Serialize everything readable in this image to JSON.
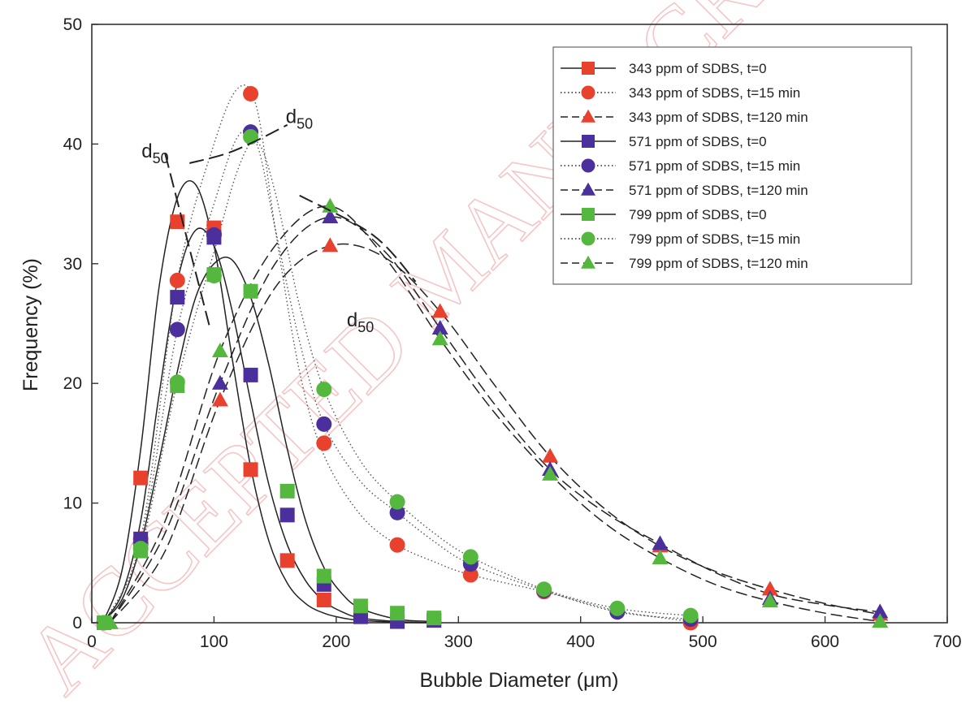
{
  "chart_data": {
    "type": "scatter",
    "title": "",
    "xlabel": "Bubble Diameter (μm)",
    "ylabel": "Frequency (%)",
    "xlim": [
      0,
      700
    ],
    "ylim": [
      0,
      50
    ],
    "xticks": [
      0,
      100,
      200,
      300,
      400,
      500,
      600,
      700
    ],
    "yticks": [
      0,
      10,
      20,
      30,
      40,
      50
    ],
    "grid": false,
    "legend_position": "top-right",
    "series": [
      {
        "name": "343 ppm of SDBS, t=0",
        "color": "#e8412e",
        "marker": "square",
        "line": "solid",
        "x": [
          10,
          40,
          70,
          100,
          130,
          160,
          190,
          220,
          250,
          280
        ],
        "y": [
          0,
          12.1,
          33.5,
          33.0,
          12.8,
          5.2,
          1.9,
          0.8,
          0.1,
          0.2
        ]
      },
      {
        "name": "343 ppm of SDBS, t=15 min",
        "color": "#e8412e",
        "marker": "circle",
        "line": "dotted",
        "x": [
          10,
          40,
          70,
          100,
          130,
          190,
          250,
          310,
          370,
          430,
          490
        ],
        "y": [
          0,
          7.0,
          28.6,
          32.5,
          44.2,
          15.0,
          6.5,
          4.0,
          2.6,
          1.0,
          0.0
        ]
      },
      {
        "name": "343 ppm of SDBS, t=120 min",
        "color": "#e8412e",
        "marker": "triangle",
        "line": "dashed",
        "x": [
          15,
          105,
          195,
          285,
          375,
          465,
          555,
          645
        ],
        "y": [
          0,
          18.6,
          31.5,
          26.0,
          13.9,
          6.4,
          2.8,
          0.7
        ]
      },
      {
        "name": "571 ppm of SDBS, t=0",
        "color": "#4b2f9c",
        "marker": "square",
        "line": "solid",
        "x": [
          10,
          40,
          70,
          100,
          130,
          160,
          190,
          220,
          250,
          280
        ],
        "y": [
          0,
          7.0,
          27.2,
          32.2,
          20.7,
          9.0,
          3.2,
          0.5,
          0.1,
          0.2
        ]
      },
      {
        "name": "571 ppm of SDBS, t=15 min",
        "color": "#4b2f9c",
        "marker": "circle",
        "line": "dotted",
        "x": [
          10,
          40,
          70,
          100,
          130,
          190,
          250,
          310,
          370,
          430,
          490
        ],
        "y": [
          0,
          6.6,
          24.5,
          32.4,
          41.0,
          16.6,
          9.2,
          4.9,
          2.7,
          0.9,
          0.3
        ]
      },
      {
        "name": "571 ppm of SDBS, t=120 min",
        "color": "#4b2f9c",
        "marker": "triangle",
        "line": "dashed",
        "x": [
          15,
          105,
          195,
          285,
          375,
          465,
          555,
          645
        ],
        "y": [
          0,
          20.0,
          33.9,
          24.6,
          12.8,
          6.6,
          2.0,
          0.9
        ]
      },
      {
        "name": "799 ppm of SDBS, t=0",
        "color": "#55b83e",
        "marker": "square",
        "line": "solid",
        "x": [
          10,
          40,
          70,
          100,
          130,
          160,
          190,
          220,
          250,
          280
        ],
        "y": [
          0,
          6.0,
          19.8,
          29.1,
          27.7,
          11.0,
          3.9,
          1.4,
          0.8,
          0.4
        ]
      },
      {
        "name": "799 ppm of SDBS, t=15 min",
        "color": "#55b83e",
        "marker": "circle",
        "line": "dotted",
        "x": [
          10,
          40,
          70,
          100,
          130,
          190,
          250,
          310,
          370,
          430,
          490
        ],
        "y": [
          0,
          6.2,
          20.1,
          29.0,
          40.6,
          19.5,
          10.1,
          5.5,
          2.8,
          1.2,
          0.6
        ]
      },
      {
        "name": "799 ppm of SDBS, t=120 min",
        "color": "#55b83e",
        "marker": "triangle",
        "line": "dashed",
        "x": [
          15,
          105,
          195,
          285,
          375,
          465,
          555,
          645
        ],
        "y": [
          0,
          22.7,
          34.8,
          23.7,
          12.4,
          5.4,
          1.8,
          0.1
        ]
      }
    ],
    "fit_curves": [
      {
        "series": "343 ppm of SDBS, t=0",
        "line": "solid",
        "x": [
          10,
          25,
          40,
          55,
          70,
          85,
          100,
          115,
          130,
          145,
          160,
          175,
          190,
          205,
          220,
          250,
          280
        ],
        "y": [
          0.2,
          4.5,
          14.5,
          28,
          35.5,
          36.6,
          31.5,
          22,
          13,
          6.8,
          3.3,
          1.6,
          0.8,
          0.4,
          0.2,
          0.05,
          0
        ]
      },
      {
        "series": "571 ppm of SDBS, t=0",
        "line": "solid",
        "x": [
          10,
          25,
          40,
          55,
          70,
          85,
          100,
          115,
          130,
          145,
          160,
          175,
          190,
          205,
          220,
          250,
          280
        ],
        "y": [
          0.2,
          2.5,
          8.5,
          19,
          28.5,
          32.8,
          31.5,
          26,
          18.5,
          11.5,
          6.5,
          3.5,
          1.8,
          0.9,
          0.4,
          0.1,
          0
        ]
      },
      {
        "series": "799 ppm of SDBS, t=0",
        "line": "solid",
        "x": [
          10,
          25,
          40,
          55,
          70,
          85,
          100,
          115,
          130,
          145,
          160,
          175,
          190,
          205,
          220,
          250,
          280
        ],
        "y": [
          0.2,
          2,
          6.5,
          13.5,
          21,
          27.2,
          30,
          30.3,
          27.2,
          21.5,
          14.5,
          8.5,
          4.6,
          2.4,
          1.2,
          0.3,
          0.1
        ]
      },
      {
        "series": "343 ppm of SDBS, t=15 min",
        "line": "dotted",
        "x": [
          10,
          40,
          70,
          100,
          120,
          135,
          150,
          170,
          190,
          220,
          250,
          280,
          310,
          370,
          430,
          490
        ],
        "y": [
          0,
          7.0,
          28.6,
          40,
          44.7,
          43,
          33,
          21,
          14,
          9.0,
          6.5,
          5.1,
          4.0,
          2.6,
          1.0,
          0.1
        ]
      },
      {
        "series": "571 ppm of SDBS, t=15 min",
        "line": "dotted",
        "x": [
          10,
          40,
          70,
          100,
          120,
          135,
          150,
          170,
          190,
          220,
          250,
          280,
          310,
          370,
          430,
          490
        ],
        "y": [
          0,
          6.6,
          24.5,
          35,
          40.7,
          40,
          33,
          23.5,
          16.6,
          11.8,
          9.2,
          6.8,
          4.9,
          2.7,
          0.9,
          0.3
        ]
      },
      {
        "series": "799 ppm of SDBS, t=15 min",
        "line": "dotted",
        "x": [
          10,
          40,
          70,
          100,
          120,
          135,
          150,
          170,
          190,
          220,
          250,
          280,
          310,
          370,
          430,
          490
        ],
        "y": [
          0,
          6.2,
          20.1,
          31,
          38,
          40.2,
          36,
          26.5,
          19.5,
          13.5,
          10.1,
          7.5,
          5.5,
          2.8,
          1.2,
          0.6
        ]
      },
      {
        "series": "343 ppm of SDBS, t=120 min",
        "line": "dashed",
        "x": [
          15,
          60,
          105,
          150,
          195,
          240,
          285,
          330,
          375,
          420,
          465,
          510,
          555,
          600,
          645
        ],
        "y": [
          0,
          6,
          18.6,
          28,
          31.5,
          30.5,
          26.0,
          19.8,
          13.9,
          9.5,
          6.4,
          4.3,
          2.8,
          1.6,
          0.7
        ]
      },
      {
        "series": "571 ppm of SDBS, t=120 min",
        "line": "dashed",
        "x": [
          15,
          60,
          105,
          150,
          195,
          240,
          285,
          330,
          375,
          420,
          465,
          510,
          555,
          600,
          645
        ],
        "y": [
          0,
          7.5,
          20.0,
          30,
          33.9,
          31,
          24.6,
          18.2,
          12.8,
          9.2,
          6.6,
          4.2,
          2.4,
          1.5,
          0.9
        ]
      },
      {
        "series": "799 ppm of SDBS, t=120 min",
        "line": "dashed",
        "x": [
          15,
          60,
          105,
          150,
          195,
          240,
          285,
          330,
          375,
          420,
          465,
          510,
          555,
          600,
          645
        ],
        "y": [
          0,
          8.5,
          22.7,
          31.5,
          34.8,
          30.5,
          23.7,
          17.5,
          12.4,
          8.3,
          5.4,
          3.2,
          1.8,
          0.8,
          0.1
        ]
      }
    ],
    "annotations": [
      {
        "text": "d",
        "subscript": "50",
        "x": 50,
        "y": 39.4,
        "leader": {
          "x": [
            60,
            97
          ],
          "y": [
            39.2,
            24.5
          ]
        }
      },
      {
        "text": "d",
        "subscript": "50",
        "x": 168,
        "y": 42.3,
        "leader": {
          "x": [
            80,
            110,
            135,
            160
          ],
          "y": [
            38.4,
            39.2,
            40.3,
            41.6
          ]
        }
      },
      {
        "text": "d",
        "subscript": "50",
        "x": 218,
        "y": 25.3,
        "leader": {
          "x": [
            170,
            230,
            265
          ],
          "y": [
            35.7,
            32.4,
            28.5
          ]
        }
      }
    ]
  },
  "watermark": "ACCEPTED MANUSCRIPT"
}
